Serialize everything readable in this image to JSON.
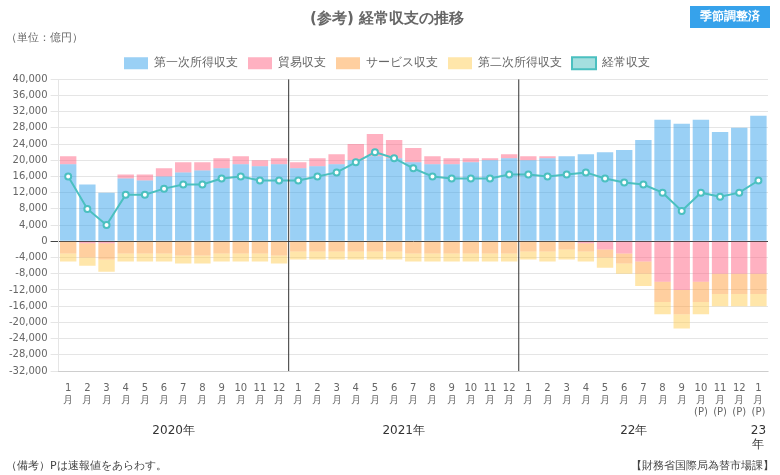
{
  "chart_data": {
    "type": "bar",
    "stacked": true,
    "title": "(参考) 経常収支の推移",
    "badge": "季節調整済",
    "unit_label": "（単位：億円）",
    "note_left": "（備考）Pは速報値をあらわす。",
    "note_right": "【財務省国際局為替市場課】",
    "categories": [
      "1\n月",
      "2\n月",
      "3\n月",
      "4\n月",
      "5\n月",
      "6\n月",
      "7\n月",
      "8\n月",
      "9\n月",
      "10\n月",
      "11\n月",
      "12\n月",
      "1\n月",
      "2\n月",
      "3\n月",
      "4\n月",
      "5\n月",
      "6\n月",
      "7\n月",
      "8\n月",
      "9\n月",
      "10\n月",
      "11\n月",
      "12\n月",
      "1\n月",
      "2\n月",
      "3\n月",
      "4\n月",
      "5\n月",
      "6\n月",
      "7\n月",
      "8\n月",
      "9\n月",
      "10\n月\n(P)",
      "11\n月\n(P)",
      "12\n月\n(P)",
      "1\n月\n(P)"
    ],
    "series": [
      {
        "name": "第一次所得収支",
        "values": [
          19000,
          14000,
          12000,
          15500,
          15000,
          16000,
          17000,
          17500,
          18000,
          19000,
          18500,
          19000,
          18000,
          18500,
          19000,
          20000,
          21000,
          20500,
          19500,
          19000,
          19000,
          19500,
          20000,
          20500,
          20000,
          20500,
          21000,
          21500,
          22000,
          22500,
          25000,
          30000,
          29000,
          30000,
          27000,
          28000,
          31000
        ]
      },
      {
        "name": "貿易収支",
        "values": [
          2000,
          -500,
          -500,
          1000,
          1500,
          2000,
          2500,
          2000,
          2500,
          2000,
          1500,
          1500,
          1500,
          2000,
          2500,
          4000,
          5500,
          4500,
          3500,
          2000,
          1500,
          1000,
          500,
          1000,
          1000,
          500,
          0,
          -500,
          -2000,
          -3000,
          -5000,
          -10000,
          -12000,
          -10000,
          -8000,
          -8000,
          -8000
        ]
      },
      {
        "name": "サービス収支",
        "values": [
          -3000,
          -3500,
          -4000,
          -3000,
          -3000,
          -3000,
          -3500,
          -3500,
          -3000,
          -3000,
          -3000,
          -3500,
          -2500,
          -2500,
          -2500,
          -2500,
          -2500,
          -2500,
          -3000,
          -3000,
          -3000,
          -3000,
          -3000,
          -3000,
          -2500,
          -2500,
          -2000,
          -2000,
          -2000,
          -2500,
          -3000,
          -5000,
          -6000,
          -5000,
          -5000,
          -5000,
          -5000
        ]
      },
      {
        "name": "第二次所得収支",
        "values": [
          -2000,
          -2000,
          -3000,
          -2000,
          -2000,
          -2000,
          -2000,
          -2000,
          -2000,
          -2000,
          -2000,
          -2000,
          -2000,
          -2000,
          -2000,
          -2000,
          -2000,
          -2000,
          -2000,
          -2000,
          -2000,
          -2000,
          -2000,
          -2000,
          -2000,
          -2500,
          -2500,
          -2500,
          -2500,
          -2500,
          -3000,
          -3000,
          -3500,
          -3000,
          -3000,
          -3000,
          -3000
        ]
      },
      {
        "name": "経常収支",
        "type": "line",
        "marker": "circle",
        "values": [
          16000,
          8000,
          4000,
          11500,
          11500,
          13000,
          14000,
          14000,
          15500,
          16000,
          15000,
          15000,
          15000,
          16000,
          17000,
          19500,
          22000,
          20500,
          18000,
          16000,
          15500,
          15500,
          15500,
          16500,
          16500,
          16000,
          16500,
          17000,
          15500,
          14500,
          14000,
          12000,
          7500,
          12000,
          11000,
          12000,
          15000
        ]
      }
    ],
    "ylim": [
      -32000,
      40000
    ],
    "yticks": [
      {
        "value": -32000,
        "label": "-32,000"
      },
      {
        "value": -28000,
        "label": "-28,000"
      },
      {
        "value": -24000,
        "label": "-24,000"
      },
      {
        "value": -20000,
        "label": "-20,000"
      },
      {
        "value": -16000,
        "label": "-16,000"
      },
      {
        "value": -12000,
        "label": "-12,000"
      },
      {
        "value": -8000,
        "label": "-8,000"
      },
      {
        "value": -4000,
        "label": "-4,000"
      },
      0,
      {
        "value": 4000,
        "label": "4,000"
      },
      {
        "value": 8000,
        "label": "8,000"
      },
      {
        "value": 12000,
        "label": "12,000"
      },
      {
        "value": 16000,
        "label": "16,000"
      },
      {
        "value": 20000,
        "label": "20,000"
      },
      {
        "value": 24000,
        "label": "24,000"
      },
      {
        "value": 28000,
        "label": "28,000"
      },
      {
        "value": 32000,
        "label": "32,000"
      },
      {
        "value": 36000,
        "label": "36,000"
      },
      {
        "value": 40000,
        "label": "40,000"
      }
    ],
    "grid": true,
    "legend": "top",
    "year_labels": [
      {
        "text": "2020年",
        "start": 0,
        "end": 11
      },
      {
        "text": "2021年",
        "start": 12,
        "end": 23
      },
      {
        "text": "22年",
        "start": 24,
        "end": 35
      },
      {
        "text": "23\n年",
        "start": 36,
        "end": 36
      }
    ],
    "year_dividers": [
      11.5,
      23.5
    ]
  }
}
